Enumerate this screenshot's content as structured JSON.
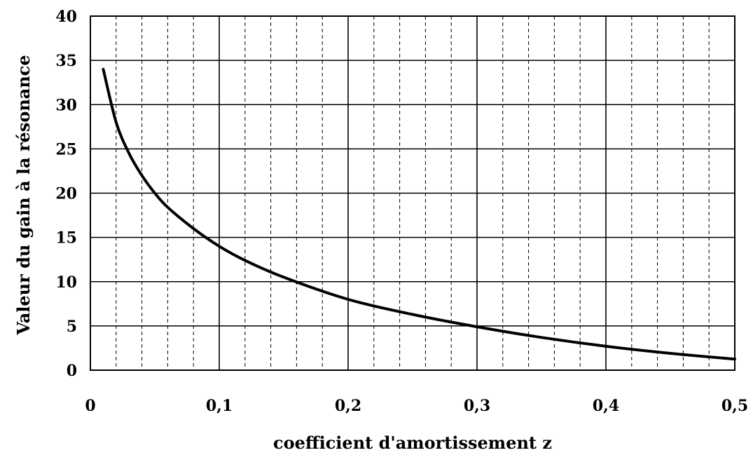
{
  "chart_data": {
    "type": "line",
    "title": "",
    "xlabel": "coefficient d'amortissement z",
    "ylabel": "Valeur du gain à la résonance",
    "xlim": [
      0,
      0.5
    ],
    "ylim": [
      0,
      40
    ],
    "x_ticks": [
      "0",
      "0,1",
      "0,2",
      "0,3",
      "0,4",
      "0,5"
    ],
    "y_ticks": [
      "0",
      "5",
      "10",
      "15",
      "20",
      "25",
      "30",
      "35",
      "40"
    ],
    "grid": "on",
    "legend": "none",
    "series": [
      {
        "x": [
          0.01,
          0.02,
          0.03,
          0.04,
          0.05,
          0.06,
          0.08,
          0.1,
          0.12,
          0.15,
          0.2,
          0.25,
          0.3,
          0.35,
          0.4,
          0.45,
          0.5
        ],
        "y": [
          34,
          28,
          24.5,
          22,
          20,
          18.4,
          16,
          14,
          12.4,
          10.5,
          8,
          6.3,
          4.9,
          3.7,
          2.7,
          1.9,
          1.25
        ],
        "color": "#000000"
      }
    ]
  }
}
